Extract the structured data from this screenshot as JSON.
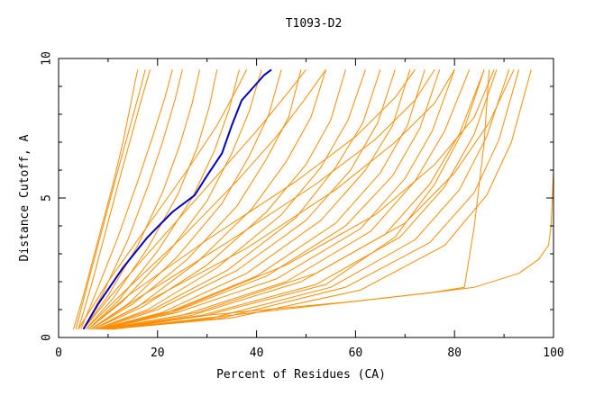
{
  "chart_data": {
    "type": "line",
    "title": "T1093-D2",
    "xlabel": "Percent of Residues (CA)",
    "ylabel": "Distance Cutoff, A",
    "xlim": [
      0,
      100
    ],
    "ylim": [
      0,
      10
    ],
    "xticks": [
      "0",
      "20",
      "40",
      "60",
      "80",
      "100"
    ],
    "xtick_values": [
      0,
      20,
      40,
      60,
      80,
      100
    ],
    "yticks": [
      "0",
      "5",
      "10"
    ],
    "ytick_values": [
      0,
      5,
      10
    ],
    "grid": false,
    "colors": {
      "orange": "#ff8c00",
      "blue": "#0000c8",
      "axis": "#000000"
    },
    "series": [
      {
        "color": "#ff8c00",
        "x": [
          3.0,
          5.0,
          8.0,
          11.0,
          13.0,
          14.5,
          15.5,
          16.0
        ],
        "y": [
          0.3,
          1.5,
          3.5,
          5.5,
          7.0,
          8.3,
          9.2,
          9.6
        ]
      },
      {
        "color": "#ff8c00",
        "x": [
          3.5,
          6.0,
          9.0,
          12.0,
          14.5,
          16.5,
          17.5
        ],
        "y": [
          0.3,
          2.0,
          4.0,
          6.0,
          7.6,
          8.9,
          9.6
        ]
      },
      {
        "color": "#ff8c00",
        "x": [
          4.0,
          6.5,
          9.5,
          12.5,
          15.0,
          17.0,
          18.5
        ],
        "y": [
          0.3,
          1.8,
          3.8,
          5.8,
          7.4,
          8.7,
          9.6
        ]
      },
      {
        "color": "#ff8c00",
        "x": [
          4.5,
          8.0,
          12.0,
          16.0,
          19.0,
          21.5,
          23.0
        ],
        "y": [
          0.3,
          1.8,
          3.6,
          5.6,
          7.2,
          8.6,
          9.6
        ]
      },
      {
        "color": "#ff8c00",
        "x": [
          5.0,
          9.0,
          14.0,
          18.0,
          21.0,
          23.5,
          25.0
        ],
        "y": [
          0.3,
          1.6,
          3.5,
          5.4,
          7.0,
          8.5,
          9.6
        ]
      },
      {
        "color": "#ff8c00",
        "x": [
          5.0,
          10.0,
          16.0,
          21.0,
          24.5,
          27.0,
          28.5
        ],
        "y": [
          0.3,
          1.5,
          3.3,
          5.2,
          6.9,
          8.4,
          9.6
        ]
      },
      {
        "color": "#ff8c00",
        "x": [
          5.5,
          11.0,
          18.0,
          24.0,
          28.0,
          30.5,
          32.0
        ],
        "y": [
          0.3,
          1.4,
          3.2,
          5.1,
          6.8,
          8.3,
          9.6
        ]
      },
      {
        "color": "#ff8c00",
        "x": [
          6.0,
          12.0,
          20.0,
          27.0,
          31.5,
          34.5,
          36.5
        ],
        "y": [
          0.3,
          1.3,
          3.1,
          5.0,
          6.7,
          8.2,
          9.6
        ]
      },
      {
        "color": "#ff8c00",
        "x": [
          6.0,
          13.0,
          22.0,
          30.0,
          35.0,
          38.5,
          41.0
        ],
        "y": [
          0.3,
          1.3,
          3.0,
          4.9,
          6.6,
          8.1,
          9.6
        ]
      },
      {
        "color": "#ff8c00",
        "x": [
          6.5,
          14.0,
          24.0,
          33.0,
          38.5,
          42.5,
          45.0
        ],
        "y": [
          0.3,
          1.2,
          2.9,
          4.8,
          6.5,
          8.0,
          9.6
        ]
      },
      {
        "color": "#ff8c00",
        "x": [
          6.5,
          15.0,
          26.0,
          36.0,
          42.0,
          46.5,
          49.0
        ],
        "y": [
          0.3,
          1.2,
          2.8,
          4.7,
          6.4,
          7.9,
          9.6
        ]
      },
      {
        "color": "#ff8c00",
        "x": [
          7.0,
          16.0,
          28.0,
          39.0,
          46.0,
          51.0,
          54.0
        ],
        "y": [
          0.3,
          1.1,
          2.7,
          4.6,
          6.3,
          7.9,
          9.6
        ]
      },
      {
        "color": "#ff8c00",
        "x": [
          7.0,
          17.0,
          30.0,
          42.0,
          50.0,
          55.0,
          58.0
        ],
        "y": [
          0.3,
          1.1,
          2.6,
          4.5,
          6.2,
          7.8,
          9.6
        ]
      },
      {
        "color": "#ff8c00",
        "x": [
          7.5,
          18.0,
          32.0,
          45.0,
          53.0,
          58.5,
          62.0
        ],
        "y": [
          0.3,
          1.0,
          2.5,
          4.4,
          6.1,
          7.8,
          9.6
        ]
      },
      {
        "color": "#ff8c00",
        "x": [
          7.5,
          19.0,
          34.0,
          48.0,
          56.0,
          61.5,
          65.0
        ],
        "y": [
          0.3,
          1.0,
          2.4,
          4.3,
          6.1,
          7.7,
          9.6
        ]
      },
      {
        "color": "#ff8c00",
        "x": [
          8.0,
          20.0,
          36.0,
          50.0,
          59.0,
          64.5,
          68.0
        ],
        "y": [
          0.3,
          1.0,
          2.4,
          4.2,
          6.0,
          7.7,
          9.6
        ]
      },
      {
        "color": "#ff8c00",
        "x": [
          8.0,
          21.0,
          38.0,
          53.0,
          62.0,
          67.5,
          71.0
        ],
        "y": [
          0.3,
          0.9,
          2.3,
          4.2,
          6.0,
          7.6,
          9.6
        ]
      },
      {
        "color": "#ff8c00",
        "x": [
          8.5,
          22.0,
          40.0,
          56.0,
          65.0,
          70.5,
          74.0
        ],
        "y": [
          0.3,
          0.9,
          2.2,
          4.1,
          5.9,
          7.6,
          9.6
        ]
      },
      {
        "color": "#ff8c00",
        "x": [
          8.5,
          23.0,
          42.0,
          58.0,
          67.5,
          73.0,
          77.0
        ],
        "y": [
          0.3,
          0.9,
          2.2,
          4.0,
          5.8,
          7.5,
          9.6
        ]
      },
      {
        "color": "#ff8c00",
        "x": [
          9.0,
          24.0,
          44.0,
          61.0,
          70.0,
          75.5,
          80.0
        ],
        "y": [
          0.3,
          0.9,
          2.1,
          3.9,
          5.7,
          7.4,
          9.6
        ]
      },
      {
        "color": "#ff8c00",
        "x": [
          9.0,
          25.0,
          46.0,
          63.0,
          72.0,
          78.0,
          83.0
        ],
        "y": [
          0.3,
          0.8,
          2.0,
          3.8,
          5.6,
          7.4,
          9.6
        ]
      },
      {
        "color": "#ff8c00",
        "x": [
          9.5,
          27.0,
          49.0,
          66.0,
          75.0,
          81.0,
          86.0
        ],
        "y": [
          0.3,
          0.8,
          2.0,
          3.7,
          5.5,
          7.3,
          9.6
        ]
      },
      {
        "color": "#ff8c00",
        "x": [
          9.5,
          29.0,
          52.0,
          69.0,
          78.0,
          84.0,
          88.5
        ],
        "y": [
          0.3,
          0.8,
          1.9,
          3.6,
          5.4,
          7.3,
          9.6
        ]
      },
      {
        "color": "#ff8c00",
        "x": [
          10.0,
          31.0,
          55.0,
          72.0,
          81.0,
          86.5,
          91.0
        ],
        "y": [
          0.3,
          0.7,
          1.8,
          3.5,
          5.3,
          7.2,
          9.6
        ]
      },
      {
        "color": "#ff8c00",
        "x": [
          10.0,
          33.0,
          58.0,
          75.0,
          84.0,
          89.0,
          93.0
        ],
        "y": [
          0.3,
          0.7,
          1.8,
          3.4,
          5.2,
          7.1,
          9.6
        ]
      },
      {
        "color": "#ff8c00",
        "x": [
          10.5,
          35.0,
          61.0,
          78.0,
          86.5,
          91.5,
          95.5
        ],
        "y": [
          0.3,
          0.7,
          1.7,
          3.3,
          5.1,
          7.0,
          9.6
        ]
      },
      {
        "color": "#ff8c00",
        "x": [
          6.0,
          14.0,
          30.0,
          48.0,
          60.0,
          68.0,
          72.0
        ],
        "y": [
          0.3,
          1.5,
          3.5,
          5.6,
          7.2,
          8.6,
          9.6
        ]
      },
      {
        "color": "#ff8c00",
        "x": [
          6.5,
          16.0,
          34.0,
          52.0,
          64.0,
          72.0,
          76.0
        ],
        "y": [
          0.3,
          1.4,
          3.4,
          5.5,
          7.1,
          8.5,
          9.6
        ]
      },
      {
        "color": "#ff8c00",
        "x": [
          7.0,
          18.0,
          38.0,
          56.0,
          68.0,
          76.0,
          80.0
        ],
        "y": [
          0.3,
          1.3,
          3.2,
          5.3,
          7.0,
          8.4,
          9.6
        ]
      },
      {
        "color": "#ff8c00",
        "x": [
          5.0,
          12.0,
          22.0,
          32.0,
          40.0,
          46.0,
          50.0
        ],
        "y": [
          0.3,
          1.8,
          3.8,
          5.8,
          7.4,
          8.7,
          9.6
        ]
      },
      {
        "color": "#ff8c00",
        "x": [
          5.5,
          13.0,
          25.0,
          36.0,
          44.0,
          50.0,
          54.0
        ],
        "y": [
          0.3,
          1.6,
          3.6,
          5.6,
          7.2,
          8.6,
          9.6
        ]
      },
      {
        "color": "#ff8c00",
        "x": [
          4.0,
          10.0,
          18.0,
          26.0,
          32.0,
          36.0,
          38.0
        ],
        "y": [
          0.3,
          2.0,
          4.0,
          6.0,
          7.6,
          8.9,
          9.6
        ]
      },
      {
        "color": "#ff8c00",
        "x": [
          8.0,
          24.0,
          46.0,
          64.0,
          76.0,
          84.0,
          88.0
        ],
        "y": [
          0.3,
          1.0,
          2.6,
          4.4,
          6.2,
          7.9,
          9.6
        ]
      },
      {
        "color": "#ff8c00",
        "x": [
          9.0,
          28.0,
          52.0,
          70.0,
          80.0,
          87.0,
          92.0
        ],
        "y": [
          0.3,
          0.9,
          2.3,
          4.1,
          5.9,
          7.7,
          9.6
        ]
      },
      {
        "color": "#ff8c00",
        "x": [
          10.0,
          30.0,
          54.0,
          68.0,
          76.0,
          82.0,
          86.0
        ],
        "y": [
          0.3,
          0.8,
          1.9,
          3.6,
          5.5,
          7.5,
          9.6
        ]
      },
      {
        "color": "#ff8c00",
        "x": [
          11.0,
          30.0,
          60.0,
          75.0,
          82.0,
          84.0,
          86.0,
          87.0
        ],
        "y": [
          0.3,
          0.7,
          1.3,
          1.6,
          1.8,
          4.0,
          7.0,
          9.6
        ]
      },
      {
        "color": "#ff8c00",
        "x": [
          11.0,
          30.0,
          60.0,
          75.0,
          84.0,
          93.0,
          97.0,
          99.0,
          99.5,
          100.0,
          100.0
        ],
        "y": [
          0.3,
          0.8,
          1.3,
          1.6,
          1.8,
          2.3,
          2.8,
          3.3,
          4.0,
          6.0,
          9.6
        ]
      },
      {
        "color": "#0000c8",
        "x": [
          5.0,
          8.0,
          13.0,
          18.0,
          23.0,
          27.5,
          30.0,
          33.0,
          35.0,
          37.0,
          39.5,
          41.5,
          43.0
        ],
        "y": [
          0.3,
          1.2,
          2.5,
          3.6,
          4.5,
          5.1,
          5.8,
          6.6,
          7.6,
          8.5,
          9.0,
          9.4,
          9.6
        ]
      }
    ]
  }
}
